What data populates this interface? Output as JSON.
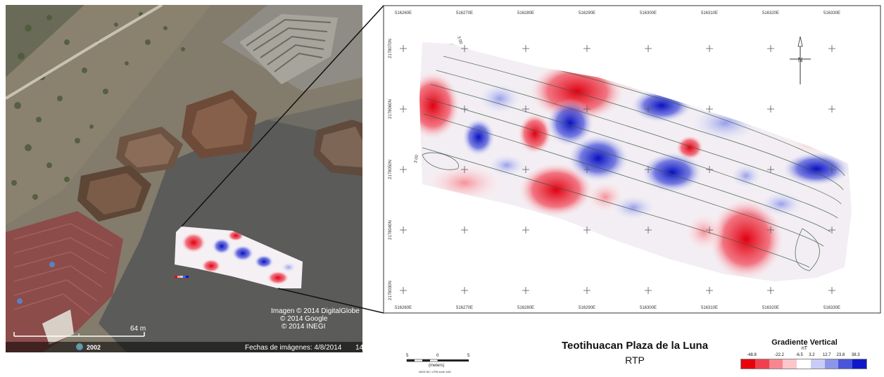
{
  "map": {
    "title": "Teotihuacan Plaza de la Luna",
    "subtitle": "RTP",
    "x_ticks": [
      "516260E",
      "516270E",
      "516280E",
      "516290E",
      "516300E",
      "516310E",
      "516320E",
      "516330E"
    ],
    "y_ticks": [
      "2178070N",
      "2178060N",
      "2178050N",
      "2178040N",
      "2178030N"
    ],
    "contour_labels": [
      "3 00",
      "3 00"
    ],
    "north_label": "N"
  },
  "legend": {
    "title": "Gradiente Vertical",
    "unit": "nT",
    "ticks": [
      "-48.8",
      "-22.2",
      "-6.5",
      "3.2",
      "12.7",
      "23.8",
      "38.3"
    ],
    "colors": [
      "#e8000b",
      "#f04050",
      "#f78690",
      "#fcc6ca",
      "#ffffff",
      "#c9cdf5",
      "#8d95e8",
      "#4a54d8",
      "#1017c8"
    ]
  },
  "scale_bar": {
    "labels": [
      "5",
      "0",
      "5"
    ],
    "unit": "(meters)",
    "projection": "WGS 84 / UTM zone 14N"
  },
  "aerial": {
    "credits": [
      "Imagen © 2014 DigitalGlobe",
      "© 2014 Google",
      "© 2014 INEGI"
    ],
    "distance": "64 m",
    "year": "2002",
    "date": "Fechas de imágenes: 4/8/2014",
    "date_tail": "14"
  }
}
